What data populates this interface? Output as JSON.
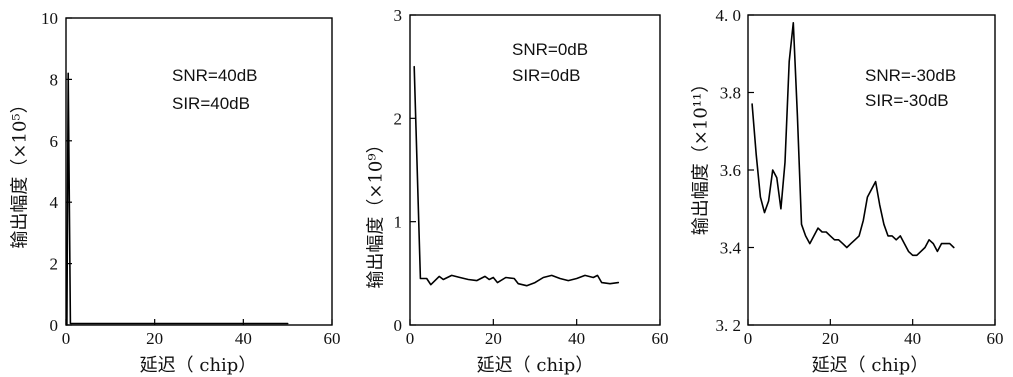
{
  "chart_data": [
    {
      "type": "line",
      "title": "",
      "xlabel": "延迟（ chip）",
      "ylabel": "输出幅度（×10⁵）",
      "xlim": [
        0,
        60
      ],
      "ylim": [
        0,
        10
      ],
      "xticks": [
        0,
        20,
        40,
        60
      ],
      "xtick_labels": [
        "0",
        "20",
        "40",
        "60"
      ],
      "yticks": [
        0,
        2,
        4,
        6,
        8,
        10
      ],
      "ytick_labels": [
        "0",
        "2",
        "4",
        "6",
        "8",
        "10"
      ],
      "annotations": [
        "SNR=40dB",
        "SIR=40dB"
      ],
      "grid": false,
      "line_color": "#000000",
      "series": [
        {
          "x": [
            0.2,
            0.5,
            1.0,
            50
          ],
          "y": [
            0,
            8.2,
            0.05,
            0.05
          ]
        }
      ]
    },
    {
      "type": "line",
      "title": "",
      "xlabel": "延迟（ chip）",
      "ylabel": "输出幅度（×10⁹）",
      "xlim": [
        0,
        60
      ],
      "ylim": [
        0,
        3
      ],
      "xticks": [
        0,
        20,
        40,
        60
      ],
      "xtick_labels": [
        "0",
        "20",
        "40",
        "60"
      ],
      "yticks": [
        0,
        1,
        2,
        3
      ],
      "ytick_labels": [
        "0",
        "1",
        "2",
        "3"
      ],
      "annotations": [
        "SNR=0dB",
        "SIR=0dB"
      ],
      "grid": false,
      "line_color": "#000000",
      "series": [
        {
          "x": [
            1,
            2.5,
            4,
            5,
            6,
            7,
            8,
            10,
            12,
            14,
            16,
            18,
            19,
            20,
            21,
            23,
            25,
            26,
            28,
            30,
            32,
            34,
            36,
            38,
            40,
            42,
            44,
            45,
            46,
            48,
            50
          ],
          "y": [
            2.5,
            0.45,
            0.45,
            0.39,
            0.43,
            0.47,
            0.44,
            0.48,
            0.46,
            0.44,
            0.43,
            0.47,
            0.44,
            0.46,
            0.41,
            0.46,
            0.45,
            0.4,
            0.38,
            0.41,
            0.46,
            0.48,
            0.45,
            0.43,
            0.45,
            0.48,
            0.46,
            0.48,
            0.41,
            0.4,
            0.41
          ]
        }
      ]
    },
    {
      "type": "line",
      "title": "",
      "xlabel": "延迟（ chip）",
      "ylabel": "输出幅度（×10¹¹）",
      "xlim": [
        0,
        60
      ],
      "ylim": [
        3.2,
        4.0
      ],
      "xticks": [
        0,
        20,
        40,
        60
      ],
      "xtick_labels": [
        "0",
        "20",
        "40",
        "60"
      ],
      "yticks": [
        3.2,
        3.4,
        3.6,
        3.8,
        4.0
      ],
      "ytick_labels": [
        "3. 2",
        "3.4",
        "3.6",
        "3.8",
        "4. 0"
      ],
      "annotations": [
        "SNR=-30dB",
        "SIR=-30dB"
      ],
      "grid": false,
      "line_color": "#000000",
      "series": [
        {
          "x": [
            1,
            2,
            3,
            4,
            5,
            6,
            7,
            8,
            9,
            10,
            11,
            12,
            13,
            14,
            15,
            16,
            17,
            18,
            19,
            20,
            21,
            22,
            23,
            24,
            25,
            26,
            27,
            28,
            29,
            30,
            31,
            32,
            33,
            34,
            35,
            36,
            37,
            38,
            39,
            40,
            41,
            42,
            43,
            44,
            45,
            46,
            47,
            48,
            49,
            50
          ],
          "y": [
            3.77,
            3.64,
            3.53,
            3.49,
            3.52,
            3.6,
            3.58,
            3.5,
            3.62,
            3.88,
            3.98,
            3.74,
            3.46,
            3.43,
            3.41,
            3.43,
            3.45,
            3.44,
            3.44,
            3.43,
            3.42,
            3.42,
            3.41,
            3.4,
            3.41,
            3.42,
            3.43,
            3.47,
            3.53,
            3.55,
            3.57,
            3.51,
            3.46,
            3.43,
            3.43,
            3.42,
            3.43,
            3.41,
            3.39,
            3.38,
            3.38,
            3.39,
            3.4,
            3.42,
            3.41,
            3.39,
            3.41,
            3.41,
            3.41,
            3.4
          ]
        }
      ]
    }
  ]
}
